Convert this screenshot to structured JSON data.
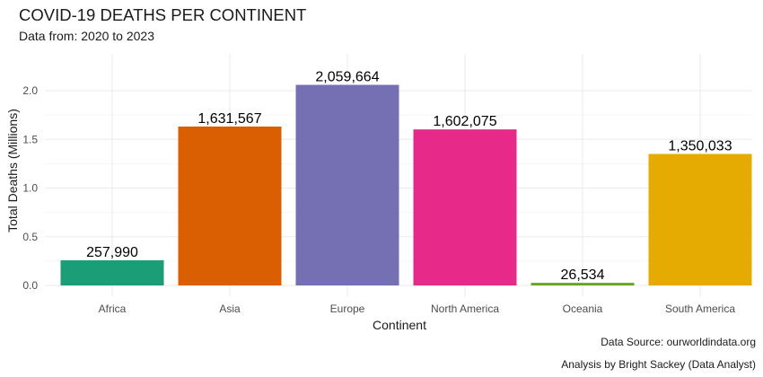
{
  "chart_data": {
    "type": "bar",
    "title": "COVID-19 DEATHS PER CONTINENT",
    "subtitle": "Data from: 2020 to 2023",
    "xlabel": "Continent",
    "ylabel": "Total Deaths (Millions)",
    "categories": [
      "Africa",
      "Asia",
      "Europe",
      "North America",
      "Oceania",
      "South America"
    ],
    "values": [
      0.25799,
      1.631567,
      2.059664,
      1.602075,
      0.026534,
      1.350033
    ],
    "data_labels": [
      "257,990",
      "1,631,567",
      "2,059,664",
      "1,602,075",
      "26,534",
      "1,350,033"
    ],
    "colors": [
      "#1b9e77",
      "#d95f02",
      "#7570b3",
      "#e7298a",
      "#66a61e",
      "#e6ab02"
    ],
    "yticks": [
      "0.0",
      "0.5",
      "1.0",
      "1.5",
      "2.0"
    ],
    "ytick_values": [
      0,
      0.5,
      1.0,
      1.5,
      2.0
    ],
    "ylim": [
      0,
      2.12
    ],
    "grid": true,
    "legend": "none"
  },
  "captions": {
    "source": "Data Source: ourworldindata.org",
    "analysis": "Analysis by Bright Sackey (Data Analyst)"
  }
}
